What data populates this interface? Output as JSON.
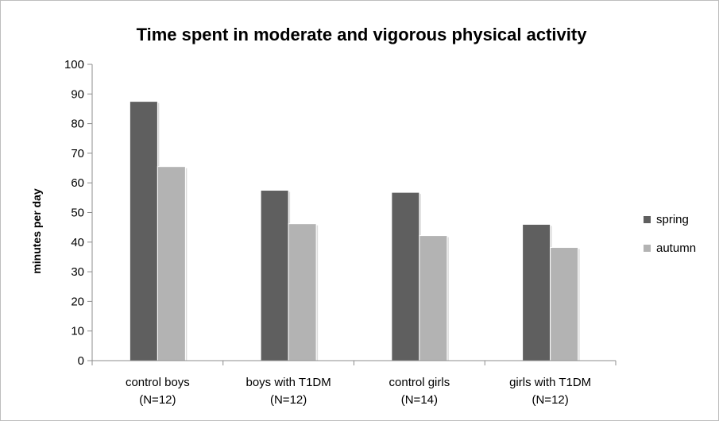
{
  "chart_data": {
    "type": "bar",
    "title": "Time spent in moderate and vigorous physical activity",
    "ylabel": "minutes per day",
    "xlabel": "",
    "ylim": [
      0,
      100
    ],
    "yticks": [
      0,
      10,
      20,
      30,
      40,
      50,
      60,
      70,
      80,
      90,
      100
    ],
    "grid": false,
    "legend_position": "right",
    "categories": [
      [
        "control boys",
        "(N=12)"
      ],
      [
        "boys with T1DM",
        "(N=12)"
      ],
      [
        "control girls",
        "(N=14)"
      ],
      [
        "girls with T1DM",
        "(N=12)"
      ]
    ],
    "series": [
      {
        "name": "spring",
        "color": "#5f5f5f",
        "values": [
          87.5,
          57.5,
          56.8,
          46
        ]
      },
      {
        "name": "autumn",
        "color": "#b3b3b3",
        "values": [
          65.5,
          46.2,
          42.2,
          38.2
        ]
      }
    ]
  }
}
